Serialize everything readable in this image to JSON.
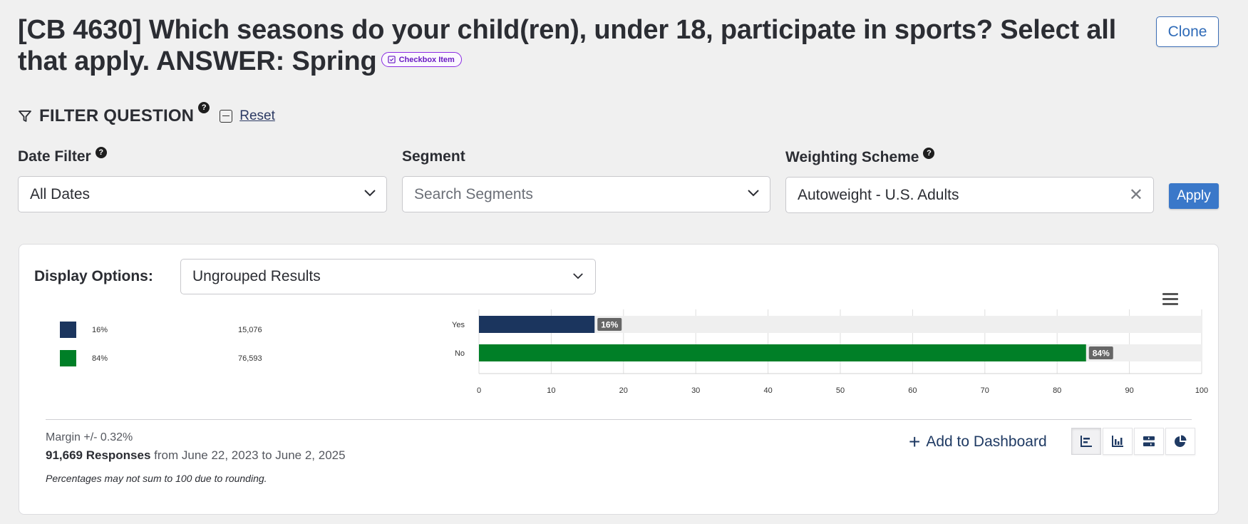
{
  "page": {
    "title": "[CB 4630] Which seasons do your child(ren), under 18, participate in sports? Select all that apply. ANSWER: Spring",
    "badge": "Checkbox Item",
    "clone_label": "Clone"
  },
  "filters": {
    "heading": "FILTER QUESTION",
    "reset_label": "Reset",
    "help_glyph": "?",
    "date_filter": {
      "label": "Date Filter",
      "value": "All Dates"
    },
    "segment": {
      "label": "Segment",
      "placeholder": "Search Segments"
    },
    "weighting": {
      "label": "Weighting Scheme",
      "value": "Autoweight - U.S. Adults"
    },
    "apply_label": "Apply"
  },
  "display": {
    "label": "Display Options:",
    "value": "Ungrouped Results"
  },
  "legend": [
    {
      "pct": "16%",
      "count": "15,076",
      "color": "#1b355e"
    },
    {
      "pct": "84%",
      "count": "76,593",
      "color": "#007f27"
    }
  ],
  "chart_data": {
    "type": "bar",
    "orientation": "horizontal",
    "categories": [
      "Yes",
      "No"
    ],
    "values": [
      16,
      84
    ],
    "data_labels": [
      "16%",
      "84%"
    ],
    "colors": [
      "#1b355e",
      "#007f27"
    ],
    "xlim": [
      0,
      100
    ],
    "x_ticks": [
      "0",
      "10",
      "20",
      "30",
      "40",
      "50",
      "60",
      "70",
      "80",
      "90",
      "100"
    ],
    "grid": true
  },
  "footer": {
    "margin": "Margin +/- 0.32%",
    "responses_count": "91,669 Responses",
    "responses_range": " from June 22, 2023 to June 2, 2025",
    "note": "Percentages may not sum to 100 due to rounding.",
    "add_dashboard": "Add to Dashboard"
  },
  "chart_type_buttons": [
    "horizontal-bar-icon",
    "vertical-bar-icon",
    "stacked-bar-icon",
    "pie-chart-icon"
  ]
}
